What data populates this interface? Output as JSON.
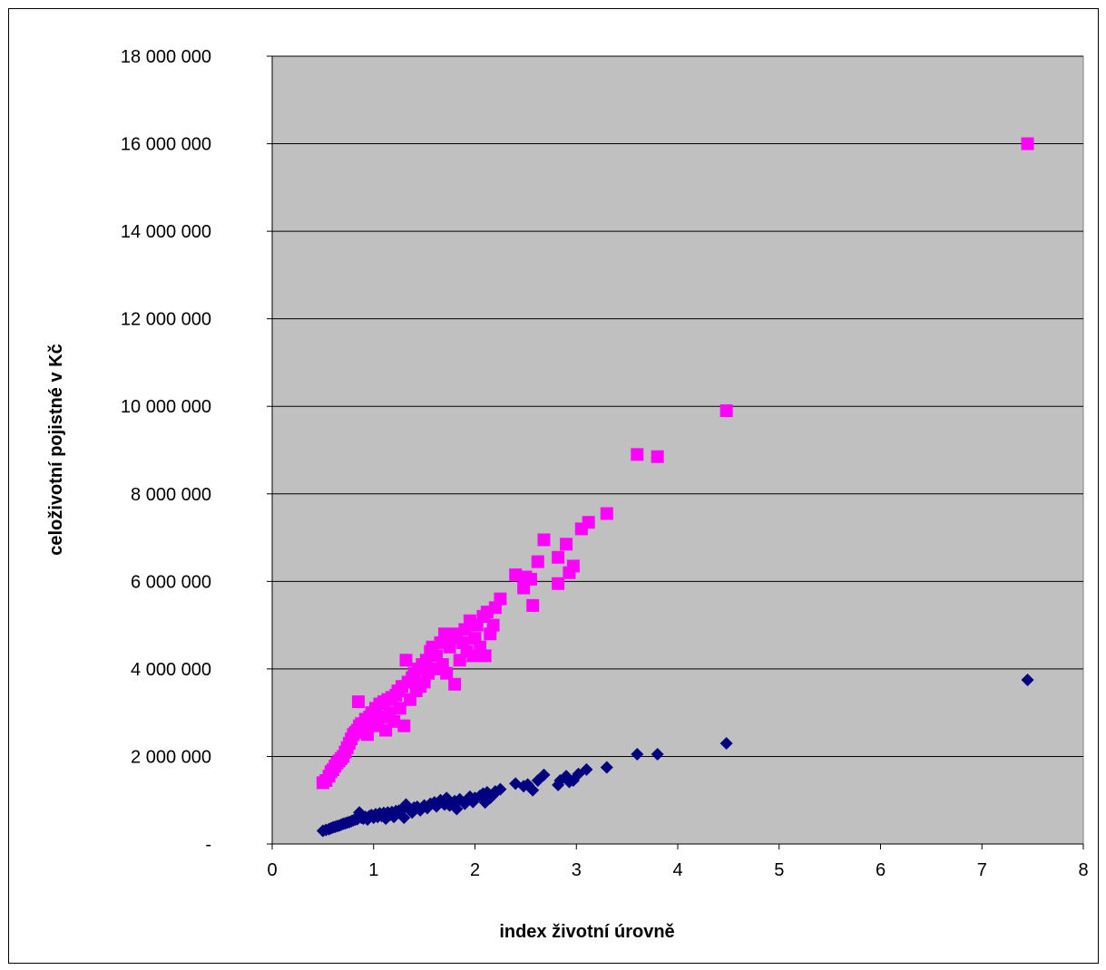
{
  "chart_data": {
    "type": "scatter",
    "xlabel": "index životní úrovně",
    "ylabel": "celoživotní pojistné v Kč",
    "xlim": [
      0,
      8
    ],
    "ylim": [
      0,
      18000000
    ],
    "x_ticks": [
      0,
      1,
      2,
      3,
      4,
      5,
      6,
      7,
      8
    ],
    "x_tick_labels": [
      "0",
      "1",
      "2",
      "3",
      "4",
      "5",
      "6",
      "7",
      "8"
    ],
    "y_ticks": [
      0,
      2000000,
      4000000,
      6000000,
      8000000,
      10000000,
      12000000,
      14000000,
      16000000,
      18000000
    ],
    "y_tick_labels": [
      "-",
      "2 000 000",
      "4 000 000",
      "6 000 000",
      "8 000 000",
      "10 000 000",
      "12 000 000",
      "14 000 000",
      "16 000 000",
      "18 000 000"
    ],
    "grid": "horizontal",
    "plot_background": "#c0c0c0",
    "series": [
      {
        "color": "#ff00ff",
        "marker": "square",
        "points": [
          [
            0.5,
            1400000
          ],
          [
            0.53,
            1450000
          ],
          [
            0.56,
            1550000
          ],
          [
            0.58,
            1650000
          ],
          [
            0.6,
            1700000
          ],
          [
            0.62,
            1780000
          ],
          [
            0.64,
            1850000
          ],
          [
            0.66,
            1900000
          ],
          [
            0.68,
            1950000
          ],
          [
            0.7,
            2000000
          ],
          [
            0.72,
            2100000
          ],
          [
            0.74,
            2200000
          ],
          [
            0.76,
            2300000
          ],
          [
            0.78,
            2400000
          ],
          [
            0.8,
            2500000
          ],
          [
            0.82,
            2550000
          ],
          [
            0.84,
            2600000
          ],
          [
            0.85,
            3250000
          ],
          [
            0.86,
            2700000
          ],
          [
            0.88,
            2750000
          ],
          [
            0.9,
            2600000
          ],
          [
            0.92,
            2850000
          ],
          [
            0.94,
            2500000
          ],
          [
            0.96,
            2900000
          ],
          [
            0.98,
            3000000
          ],
          [
            1.0,
            2700000
          ],
          [
            1.02,
            3100000
          ],
          [
            1.04,
            2800000
          ],
          [
            1.06,
            3200000
          ],
          [
            1.08,
            2900000
          ],
          [
            1.1,
            3250000
          ],
          [
            1.12,
            2600000
          ],
          [
            1.14,
            3300000
          ],
          [
            1.16,
            3000000
          ],
          [
            1.18,
            3350000
          ],
          [
            1.2,
            2800000
          ],
          [
            1.22,
            3400000
          ],
          [
            1.24,
            3500000
          ],
          [
            1.26,
            3100000
          ],
          [
            1.28,
            3600000
          ],
          [
            1.3,
            2700000
          ],
          [
            1.32,
            4200000
          ],
          [
            1.34,
            3700000
          ],
          [
            1.36,
            3300000
          ],
          [
            1.38,
            3800000
          ],
          [
            1.4,
            3900000
          ],
          [
            1.42,
            3500000
          ],
          [
            1.44,
            4000000
          ],
          [
            1.46,
            3600000
          ],
          [
            1.48,
            4100000
          ],
          [
            1.5,
            3700000
          ],
          [
            1.52,
            4200000
          ],
          [
            1.54,
            3900000
          ],
          [
            1.56,
            4400000
          ],
          [
            1.58,
            4500000
          ],
          [
            1.6,
            4000000
          ],
          [
            1.62,
            4300000
          ],
          [
            1.66,
            4600000
          ],
          [
            1.68,
            4100000
          ],
          [
            1.7,
            4800000
          ],
          [
            1.72,
            3900000
          ],
          [
            1.75,
            4500000
          ],
          [
            1.78,
            4700000
          ],
          [
            1.8,
            3650000
          ],
          [
            1.82,
            4800000
          ],
          [
            1.85,
            4200000
          ],
          [
            1.88,
            4600000
          ],
          [
            1.9,
            4900000
          ],
          [
            1.92,
            4400000
          ],
          [
            1.95,
            5100000
          ],
          [
            1.98,
            4300000
          ],
          [
            2.0,
            4700000
          ],
          [
            2.02,
            5000000
          ],
          [
            2.05,
            4500000
          ],
          [
            2.08,
            5200000
          ],
          [
            2.1,
            4300000
          ],
          [
            2.12,
            5300000
          ],
          [
            2.15,
            4800000
          ],
          [
            2.18,
            5000000
          ],
          [
            2.2,
            5400000
          ],
          [
            2.25,
            5600000
          ],
          [
            2.4,
            6150000
          ],
          [
            2.48,
            5850000
          ],
          [
            2.5,
            6100000
          ],
          [
            2.55,
            6050000
          ],
          [
            2.57,
            5450000
          ],
          [
            2.62,
            6450000
          ],
          [
            2.68,
            6950000
          ],
          [
            2.82,
            6550000
          ],
          [
            2.82,
            5950000
          ],
          [
            2.9,
            6850000
          ],
          [
            2.93,
            6200000
          ],
          [
            2.97,
            6350000
          ],
          [
            3.05,
            7200000
          ],
          [
            3.12,
            7350000
          ],
          [
            3.3,
            7550000
          ],
          [
            3.6,
            8900000
          ],
          [
            3.8,
            8850000
          ],
          [
            4.48,
            9900000
          ],
          [
            7.45,
            16000000
          ]
        ]
      },
      {
        "color": "#000080",
        "marker": "diamond",
        "points": [
          [
            0.5,
            300000
          ],
          [
            0.53,
            320000
          ],
          [
            0.56,
            340000
          ],
          [
            0.58,
            360000
          ],
          [
            0.6,
            380000
          ],
          [
            0.62,
            390000
          ],
          [
            0.64,
            410000
          ],
          [
            0.66,
            420000
          ],
          [
            0.68,
            440000
          ],
          [
            0.7,
            460000
          ],
          [
            0.72,
            470000
          ],
          [
            0.74,
            490000
          ],
          [
            0.76,
            500000
          ],
          [
            0.78,
            520000
          ],
          [
            0.8,
            540000
          ],
          [
            0.82,
            560000
          ],
          [
            0.84,
            570000
          ],
          [
            0.86,
            720000
          ],
          [
            0.88,
            600000
          ],
          [
            0.9,
            580000
          ],
          [
            0.92,
            620000
          ],
          [
            0.94,
            560000
          ],
          [
            0.96,
            640000
          ],
          [
            0.98,
            660000
          ],
          [
            1.0,
            600000
          ],
          [
            1.02,
            680000
          ],
          [
            1.04,
            620000
          ],
          [
            1.06,
            700000
          ],
          [
            1.08,
            640000
          ],
          [
            1.1,
            710000
          ],
          [
            1.12,
            580000
          ],
          [
            1.14,
            720000
          ],
          [
            1.16,
            660000
          ],
          [
            1.18,
            730000
          ],
          [
            1.2,
            620000
          ],
          [
            1.22,
            750000
          ],
          [
            1.25,
            760000
          ],
          [
            1.28,
            780000
          ],
          [
            1.3,
            600000
          ],
          [
            1.32,
            900000
          ],
          [
            1.35,
            800000
          ],
          [
            1.38,
            720000
          ],
          [
            1.4,
            830000
          ],
          [
            1.43,
            850000
          ],
          [
            1.46,
            770000
          ],
          [
            1.5,
            880000
          ],
          [
            1.53,
            820000
          ],
          [
            1.56,
            920000
          ],
          [
            1.6,
            950000
          ],
          [
            1.62,
            860000
          ],
          [
            1.66,
            1000000
          ],
          [
            1.7,
            900000
          ],
          [
            1.72,
            1050000
          ],
          [
            1.75,
            880000
          ],
          [
            1.8,
            980000
          ],
          [
            1.82,
            800000
          ],
          [
            1.85,
            1020000
          ],
          [
            1.9,
            920000
          ],
          [
            1.95,
            1080000
          ],
          [
            1.98,
            960000
          ],
          [
            2.0,
            1050000
          ],
          [
            2.05,
            1100000
          ],
          [
            2.08,
            1150000
          ],
          [
            2.1,
            950000
          ],
          [
            2.12,
            1180000
          ],
          [
            2.15,
            1050000
          ],
          [
            2.18,
            1120000
          ],
          [
            2.2,
            1200000
          ],
          [
            2.25,
            1250000
          ],
          [
            2.4,
            1380000
          ],
          [
            2.48,
            1320000
          ],
          [
            2.52,
            1360000
          ],
          [
            2.57,
            1230000
          ],
          [
            2.62,
            1450000
          ],
          [
            2.68,
            1580000
          ],
          [
            2.82,
            1350000
          ],
          [
            2.84,
            1450000
          ],
          [
            2.9,
            1550000
          ],
          [
            2.93,
            1420000
          ],
          [
            2.97,
            1450000
          ],
          [
            3.02,
            1600000
          ],
          [
            3.1,
            1700000
          ],
          [
            3.3,
            1750000
          ],
          [
            3.6,
            2050000
          ],
          [
            3.8,
            2050000
          ],
          [
            4.48,
            2300000
          ],
          [
            7.45,
            3750000
          ]
        ]
      }
    ]
  }
}
